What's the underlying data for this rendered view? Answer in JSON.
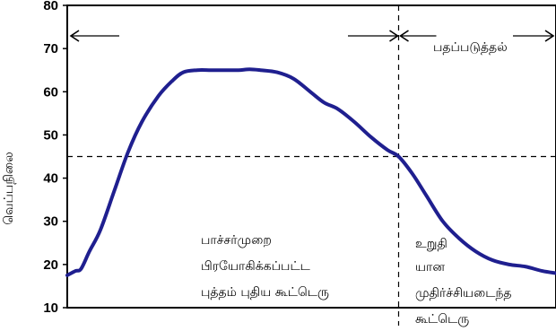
{
  "chart_data": {
    "type": "line",
    "ylabel": "வெப்பநிலை",
    "xlabel": "",
    "ylim": [
      10,
      80
    ],
    "yticks": [
      10,
      20,
      30,
      40,
      50,
      60,
      70,
      80
    ],
    "x_ticks_shown": false,
    "grid": false,
    "threshold_y": 45,
    "series": [
      {
        "color": "#1f1f8f",
        "points": [
          [
            0,
            17.5
          ],
          [
            3,
            18.5
          ],
          [
            5,
            19
          ],
          [
            8,
            23
          ],
          [
            12,
            28
          ],
          [
            17,
            37
          ],
          [
            22,
            46
          ],
          [
            27,
            53
          ],
          [
            33,
            59
          ],
          [
            38,
            62.5
          ],
          [
            42,
            64.5
          ],
          [
            47,
            65
          ],
          [
            52,
            65
          ],
          [
            57,
            65
          ],
          [
            62,
            65
          ],
          [
            66,
            65.2
          ],
          [
            70,
            65
          ],
          [
            76,
            64.5
          ],
          [
            82,
            63
          ],
          [
            88,
            60
          ],
          [
            93,
            57.5
          ],
          [
            98,
            56
          ],
          [
            104,
            53
          ],
          [
            110,
            49.5
          ],
          [
            116,
            46.5
          ],
          [
            120,
            45
          ],
          [
            125,
            41
          ],
          [
            130,
            36
          ],
          [
            136,
            30
          ],
          [
            142,
            26
          ],
          [
            148,
            23
          ],
          [
            154,
            21
          ],
          [
            160,
            20
          ],
          [
            166,
            19.5
          ],
          [
            172,
            18.5
          ],
          [
            177,
            18
          ]
        ]
      }
    ],
    "annotations": {
      "phase_divider_x": 120,
      "ripening_label": "பதப்படுத்தல்",
      "center_lines": [
        "பாச்சர்முறை",
        "பிரயோகிக்கப்பட்ட",
        "புத்தம்  புதிய  கூட்டெரு"
      ],
      "right_lines": [
        "உறுதி",
        "யான",
        "முதிர்ச்சியடைந்த",
        "கூட்டெரு"
      ]
    }
  }
}
